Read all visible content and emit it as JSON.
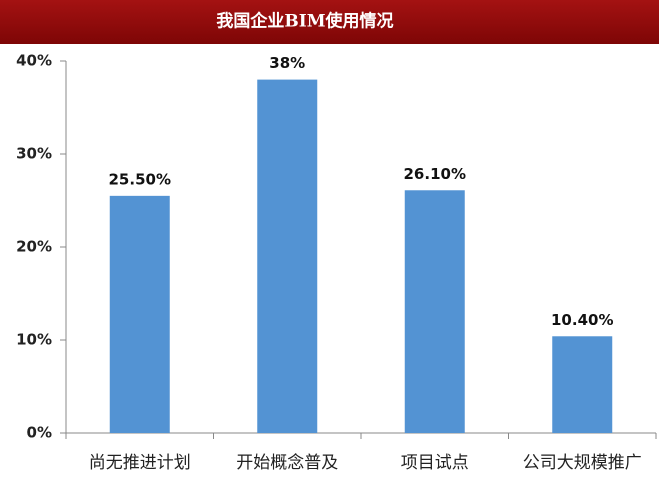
{
  "chart_data": {
    "type": "bar",
    "title": "我国企业BIM使用情况",
    "categories": [
      "尚无推进计划",
      "开始概念普及",
      "项目试点",
      "公司大规模推广"
    ],
    "values": [
      25.5,
      38,
      26.1,
      10.4
    ],
    "value_labels": [
      "25.50%",
      "38%",
      "26.10%",
      "10.40%"
    ],
    "color": "#5393d3",
    "ylim": [
      0,
      40
    ],
    "yticks": [
      {
        "value": 0,
        "label": "0%"
      },
      {
        "value": 10,
        "label": "10%"
      },
      {
        "value": 20,
        "label": "20%"
      },
      {
        "value": 30,
        "label": "30%"
      },
      {
        "value": 40,
        "label": "40%"
      }
    ],
    "grid": false
  }
}
